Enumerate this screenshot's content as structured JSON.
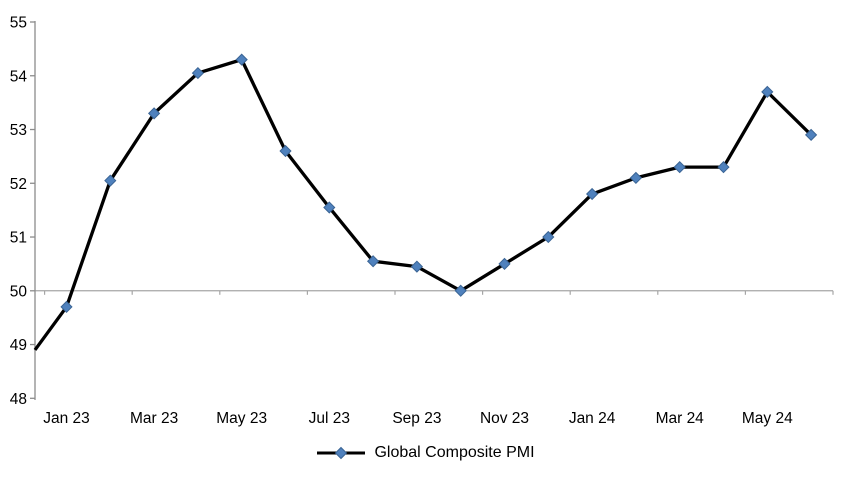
{
  "chart_data": {
    "type": "line",
    "title": "",
    "categories": [
      "Jan 23",
      "Feb 23",
      "Mar 23",
      "Apr 23",
      "May 23",
      "Jun 23",
      "Jul 23",
      "Aug 23",
      "Sep 23",
      "Oct 23",
      "Nov 23",
      "Dec 23",
      "Jan 24",
      "Feb 24",
      "Mar 24",
      "Apr 24",
      "May 24",
      "Jun 24"
    ],
    "series": [
      {
        "name": "Global Composite PMI",
        "values": [
          49.7,
          52.05,
          53.3,
          54.05,
          54.3,
          52.6,
          51.55,
          50.55,
          50.45,
          50.0,
          50.5,
          51.0,
          51.8,
          52.1,
          52.3,
          52.3,
          53.7,
          52.9
        ],
        "marker": "diamond",
        "marker_color": "#4F81BD",
        "marker_border_color": "#3A6494",
        "line_color": "#000000"
      }
    ],
    "clipped_lead_in_value": 48.9,
    "ylim": [
      48,
      55
    ],
    "ytick_labels": [
      "48",
      "49",
      "50",
      "51",
      "52",
      "53",
      "54",
      "55"
    ],
    "xtick_labels": [
      "Jan 23",
      "Mar 23",
      "May 23",
      "Jul 23",
      "Sep 23",
      "Nov 23",
      "Jan 24",
      "Mar 24",
      "May 24"
    ],
    "xtick_label_every_n_categories": 2,
    "x_axis_crosses_at": 50,
    "grid": false,
    "legend_position": "bottom",
    "legend_entries": [
      "Global Composite PMI"
    ],
    "colors": {
      "series_line": "#000000",
      "marker_fill": "#4F81BD",
      "value_axis_line": "#8C8C8C",
      "category_axis_line": "#A6A6A6",
      "text": "#000000",
      "background": "#FFFFFF"
    }
  }
}
